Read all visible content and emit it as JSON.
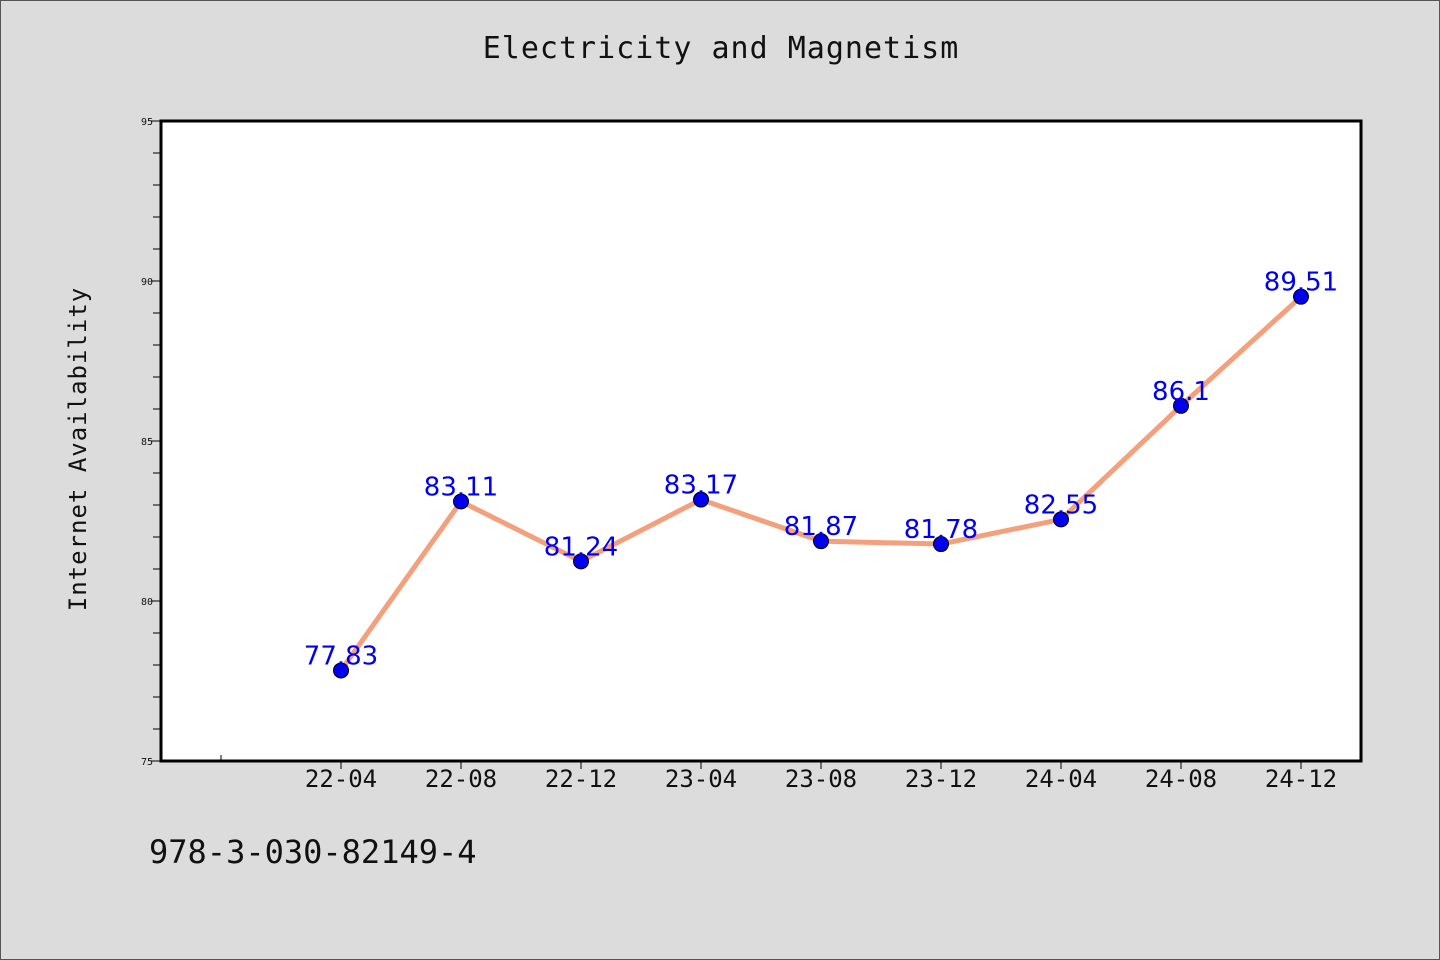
{
  "colors": {
    "background": "#dcdcdc",
    "plot_background": "#ffffff",
    "line": "#f4a07c",
    "marker": "#0000ee",
    "data_label": "#0000ee"
  },
  "footer": {
    "isbn": "978-3-030-82149-4"
  },
  "chart_data": {
    "type": "line",
    "title": "Electricity and Magnetism",
    "xlabel": "",
    "ylabel": "Internet Availability",
    "categories": [
      "22-04",
      "22-08",
      "22-12",
      "23-04",
      "23-08",
      "23-12",
      "24-04",
      "24-08",
      "24-12"
    ],
    "series": [
      {
        "values": [
          77.83,
          83.11,
          81.24,
          83.17,
          81.87,
          81.78,
          82.55,
          86.1,
          89.51
        ],
        "labels": [
          "77.83",
          "83.11",
          "81.24",
          "83.17",
          "81.87",
          "81.78",
          "82.55",
          "86.1",
          "89.51"
        ]
      }
    ],
    "ylim": [
      75,
      95
    ],
    "yticks": [
      "75",
      "80",
      "85",
      "90",
      "95"
    ],
    "grid": false,
    "legend": "none"
  }
}
